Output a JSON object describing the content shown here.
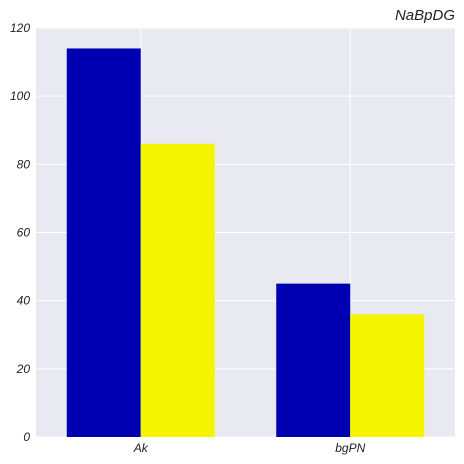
{
  "chart_data": {
    "type": "bar",
    "title": "NaBpDG",
    "xlabel": "",
    "ylabel": "",
    "categories": [
      "Ak",
      "bgPN"
    ],
    "series": [
      {
        "values": [
          114,
          45
        ],
        "color": "#0000b3"
      },
      {
        "values": [
          86,
          36
        ],
        "color": "#f5f500"
      }
    ],
    "ylim": [
      0,
      120
    ],
    "yticks": [
      0,
      20,
      40,
      60,
      80,
      100,
      120
    ],
    "grid": true,
    "background_color": "#e9e9f1",
    "grid_color": "#ffffff"
  }
}
